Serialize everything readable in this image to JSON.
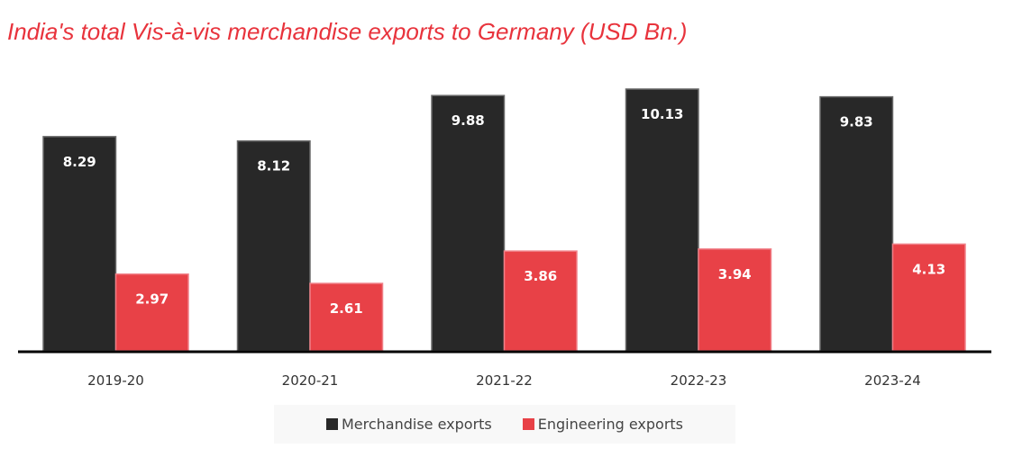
{
  "chart_data": {
    "type": "bar",
    "title": "India's total Vis-à-vis merchandise exports to Germany (USD Bn.)",
    "categories": [
      "2019-20",
      "2020-21",
      "2021-22",
      "2022-23",
      "2023-24"
    ],
    "series": [
      {
        "name": "Merchandise exports",
        "color": "#282828",
        "values": [
          8.29,
          8.12,
          9.88,
          10.13,
          9.83
        ],
        "labels": [
          "8.29",
          "8.12",
          "9.88",
          "10.13",
          "9.83"
        ]
      },
      {
        "name": "Engineering exports",
        "color": "#e84147",
        "values": [
          2.97,
          2.61,
          3.86,
          3.94,
          4.13
        ],
        "labels": [
          "2.97",
          "2.61",
          "3.86",
          "3.94",
          "4.13"
        ]
      }
    ],
    "xlabel": "",
    "ylabel": "",
    "ylim": [
      0,
      10.13
    ],
    "grid": false,
    "legend": "bottom"
  }
}
